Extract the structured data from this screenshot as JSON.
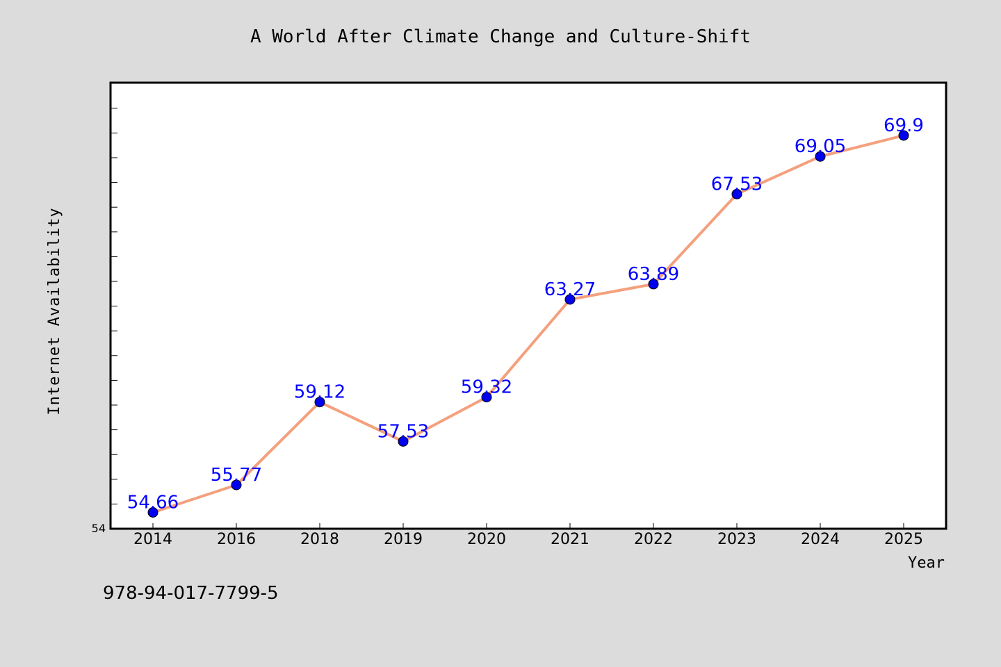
{
  "chart_data": {
    "type": "line",
    "title": "A World After Climate Change and Culture-Shift",
    "xlabel": "Year",
    "ylabel": "Internet Availability",
    "categories": [
      "2014",
      "2016",
      "2018",
      "2019",
      "2020",
      "2021",
      "2022",
      "2023",
      "2024",
      "2025"
    ],
    "series": [
      {
        "values": [
          54.66,
          55.77,
          59.12,
          57.53,
          59.32,
          63.27,
          63.89,
          67.53,
          69.05,
          69.9
        ],
        "labels": [
          "54.66",
          "55.77",
          "59.12",
          "57.53",
          "59.32",
          "63.27",
          "63.89",
          "67.53",
          "69.05",
          "69.9"
        ]
      }
    ],
    "ylim": [
      54,
      72
    ],
    "y_tick_label": "54",
    "y_minor_tick_step": 1,
    "grid": false,
    "line_color": "#f4a07e",
    "marker_color": "#0000ee",
    "label_color": "#0000ff"
  },
  "footer_text": "978-94-017-7799-5"
}
